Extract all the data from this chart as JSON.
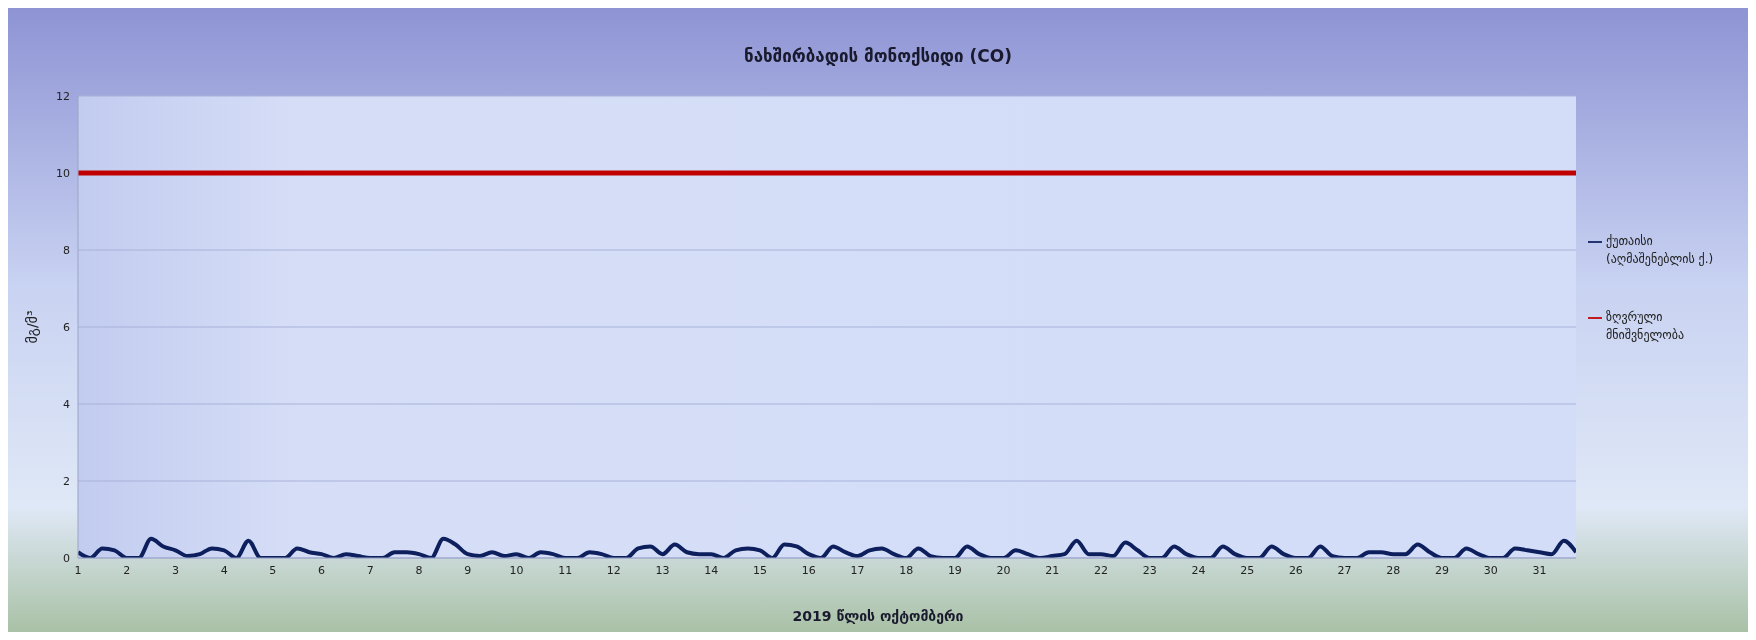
{
  "chart_data": {
    "type": "line",
    "title": "ნახშირბადის მონოქსიდი (CO)",
    "xlabel": "2019 წლის ოქტომბერი",
    "ylabel": "მგ/მ³",
    "x": [
      1,
      1.25,
      1.5,
      1.75,
      2,
      2.25,
      2.5,
      2.75,
      3,
      3.25,
      3.5,
      3.75,
      4,
      4.25,
      4.5,
      4.75,
      5,
      5.25,
      5.5,
      5.75,
      6,
      6.25,
      6.5,
      6.75,
      7,
      7.25,
      7.5,
      7.75,
      8,
      8.25,
      8.5,
      8.75,
      9,
      9.25,
      9.5,
      9.75,
      10,
      10.25,
      10.5,
      10.75,
      11,
      11.25,
      11.5,
      11.75,
      12,
      12.25,
      12.5,
      12.75,
      13,
      13.25,
      13.5,
      13.75,
      14,
      14.25,
      14.5,
      14.75,
      15,
      15.25,
      15.5,
      15.75,
      16,
      16.25,
      16.5,
      16.75,
      17,
      17.25,
      17.5,
      17.75,
      18,
      18.25,
      18.5,
      18.75,
      19,
      19.25,
      19.5,
      19.75,
      20,
      20.25,
      20.5,
      20.75,
      21,
      21.25,
      21.5,
      21.75,
      22,
      22.25,
      22.5,
      22.75,
      23,
      23.25,
      23.5,
      23.75,
      24,
      24.25,
      24.5,
      24.75,
      25,
      25.25,
      25.5,
      25.75,
      26,
      26.25,
      26.5,
      26.75,
      27,
      27.25,
      27.5,
      27.75,
      28,
      28.25,
      28.5,
      28.75,
      29,
      29.25,
      29.5,
      29.75,
      30,
      30.25,
      30.5,
      30.75,
      31,
      31.25,
      31.5,
      31.75
    ],
    "xlim": [
      1,
      31.75
    ],
    "xticks": [
      1,
      2,
      3,
      4,
      5,
      6,
      7,
      8,
      9,
      10,
      11,
      12,
      13,
      14,
      15,
      16,
      17,
      18,
      19,
      20,
      21,
      22,
      23,
      24,
      25,
      26,
      27,
      28,
      29,
      30,
      31
    ],
    "series": [
      {
        "name": "ქუთაისი (აღმაშენებლის ქ.)",
        "color": "#0d1f5c",
        "values": [
          0.15,
          0,
          0.25,
          0.2,
          0,
          0,
          0.5,
          0.3,
          0.2,
          0.05,
          0.1,
          0.25,
          0.2,
          0,
          0.45,
          0,
          0,
          0,
          0.25,
          0.15,
          0.1,
          0,
          0.1,
          0.05,
          0,
          0,
          0.15,
          0.15,
          0.1,
          0,
          0.5,
          0.35,
          0.1,
          0.05,
          0.15,
          0.05,
          0.1,
          0,
          0.15,
          0.1,
          0,
          0,
          0.15,
          0.1,
          0,
          0,
          0.25,
          0.3,
          0.1,
          0.35,
          0.15,
          0.1,
          0.1,
          0,
          0.2,
          0.25,
          0.2,
          0,
          0.35,
          0.3,
          0.1,
          0,
          0.3,
          0.15,
          0.05,
          0.2,
          0.25,
          0.1,
          0,
          0.25,
          0.05,
          0,
          0,
          0.3,
          0.1,
          0,
          0,
          0.2,
          0.1,
          0,
          0.05,
          0.1,
          0.45,
          0.1,
          0.1,
          0.05,
          0.4,
          0.2,
          0,
          0,
          0.3,
          0.1,
          0,
          0,
          0.3,
          0.1,
          0,
          0,
          0.3,
          0.1,
          0,
          0,
          0.3,
          0.05,
          0,
          0,
          0.15,
          0.15,
          0.1,
          0.1,
          0.35,
          0.15,
          0,
          0,
          0.25,
          0.1,
          0,
          0,
          0.25,
          0.2,
          0.15,
          0.1,
          0.45,
          0.15
        ]
      },
      {
        "name": "ზღვრული მნიშვნელობა",
        "color": "#c00000",
        "values": [
          10,
          10,
          10,
          10,
          10,
          10,
          10,
          10,
          10,
          10,
          10,
          10,
          10,
          10,
          10,
          10,
          10,
          10,
          10,
          10,
          10,
          10,
          10,
          10,
          10,
          10,
          10,
          10,
          10,
          10,
          10,
          10,
          10,
          10,
          10,
          10,
          10,
          10,
          10,
          10,
          10,
          10,
          10,
          10,
          10,
          10,
          10,
          10,
          10,
          10,
          10,
          10,
          10,
          10,
          10,
          10,
          10,
          10,
          10,
          10,
          10,
          10,
          10,
          10,
          10,
          10,
          10,
          10,
          10,
          10,
          10,
          10,
          10,
          10,
          10,
          10,
          10,
          10,
          10,
          10,
          10,
          10,
          10,
          10,
          10,
          10,
          10,
          10,
          10,
          10,
          10,
          10,
          10,
          10,
          10,
          10,
          10,
          10,
          10,
          10,
          10,
          10,
          10,
          10,
          10,
          10,
          10,
          10,
          10,
          10,
          10,
          10,
          10,
          10,
          10,
          10,
          10,
          10,
          10,
          10,
          10,
          10,
          10,
          10
        ]
      }
    ],
    "ylim": [
      0,
      12
    ],
    "yticks": [
      0,
      2,
      4,
      6,
      8,
      10,
      12
    ],
    "grid": "y",
    "legend": "right",
    "marker": "none"
  }
}
